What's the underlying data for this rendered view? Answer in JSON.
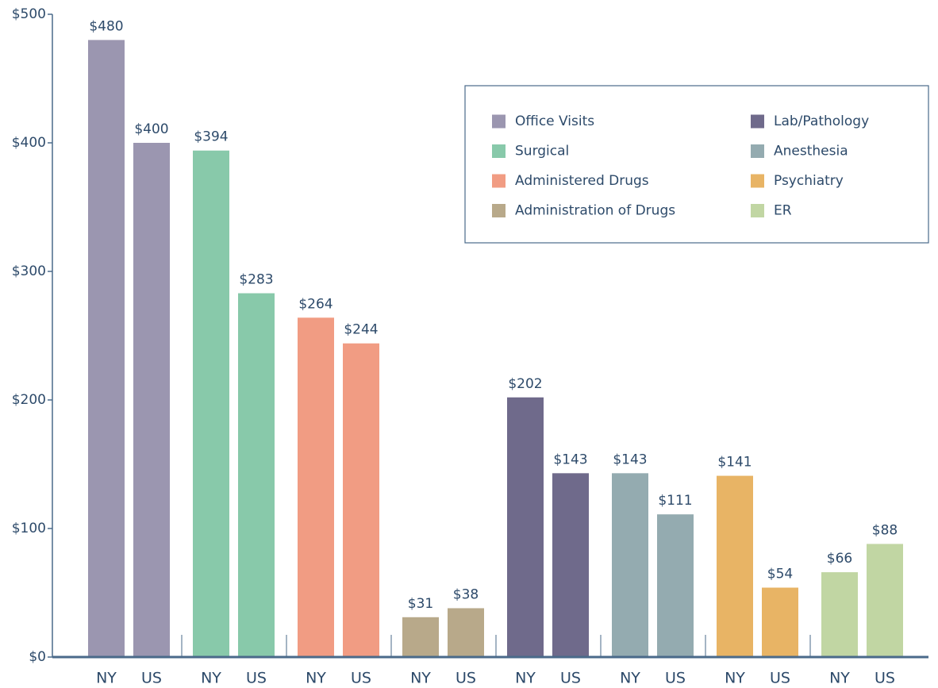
{
  "chart_data": {
    "type": "bar",
    "categories": [
      "NY",
      "US"
    ],
    "series": [
      {
        "name": "Office Visits",
        "color": "#9b96b0",
        "values": [
          480,
          400
        ],
        "value_labels": [
          "$480",
          "$400"
        ]
      },
      {
        "name": "Surgical",
        "color": "#88c9aa",
        "values": [
          394,
          283
        ],
        "value_labels": [
          "$394",
          "$283"
        ]
      },
      {
        "name": "Administered Drugs",
        "color": "#f19c83",
        "values": [
          264,
          244
        ],
        "value_labels": [
          "$264",
          "$244"
        ]
      },
      {
        "name": "Administration of Drugs",
        "color": "#b8a98a",
        "values": [
          31,
          38
        ],
        "value_labels": [
          "$31",
          "$38"
        ]
      },
      {
        "name": "Lab/Pathology",
        "color": "#6f6a8b",
        "values": [
          202,
          143
        ],
        "value_labels": [
          "$202",
          "$143"
        ]
      },
      {
        "name": "Anesthesia",
        "color": "#94abb0",
        "values": [
          143,
          111
        ],
        "value_labels": [
          "$143",
          "$111"
        ]
      },
      {
        "name": "Psychiatry",
        "color": "#e8b465",
        "values": [
          141,
          54
        ],
        "value_labels": [
          "$141",
          "$54"
        ]
      },
      {
        "name": "ER",
        "color": "#c1d6a3",
        "values": [
          66,
          88
        ],
        "value_labels": [
          "$66",
          "$88"
        ]
      }
    ],
    "ylim": [
      0,
      500
    ],
    "yticks": [
      {
        "value": 0,
        "label": "$0"
      },
      {
        "value": 100,
        "label": "$100"
      },
      {
        "value": 200,
        "label": "$200"
      },
      {
        "value": 300,
        "label": "$300"
      },
      {
        "value": 400,
        "label": "$400"
      },
      {
        "value": 500,
        "label": "$500"
      }
    ],
    "legend": "upper right"
  }
}
